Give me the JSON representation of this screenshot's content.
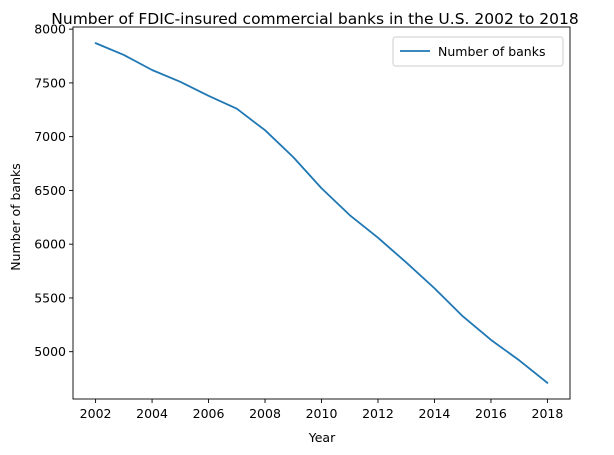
{
  "chart_data": {
    "type": "line",
    "title": "Number of FDIC-insured commercial banks in the U.S. 2002 to 2018",
    "xlabel": "Year",
    "ylabel": "Number of banks",
    "x": [
      2002,
      2003,
      2004,
      2005,
      2006,
      2007,
      2008,
      2009,
      2010,
      2011,
      2012,
      2013,
      2014,
      2015,
      2016,
      2017,
      2018
    ],
    "series": [
      {
        "name": "Number of banks",
        "color": "#1f77b4",
        "values": [
          7870,
          7760,
          7620,
          7510,
          7380,
          7260,
          7060,
          6810,
          6520,
          6270,
          6060,
          5830,
          5590,
          5330,
          5110,
          4920,
          4710
        ]
      }
    ],
    "xlim": [
      2001.2,
      2018.8
    ],
    "ylim": [
      4560,
      8020
    ],
    "xticks": [
      2002,
      2004,
      2006,
      2008,
      2010,
      2012,
      2014,
      2016,
      2018
    ],
    "yticks": [
      5000,
      5500,
      6000,
      6500,
      7000,
      7500,
      8000
    ],
    "grid": false,
    "legend_position": "top-right"
  }
}
